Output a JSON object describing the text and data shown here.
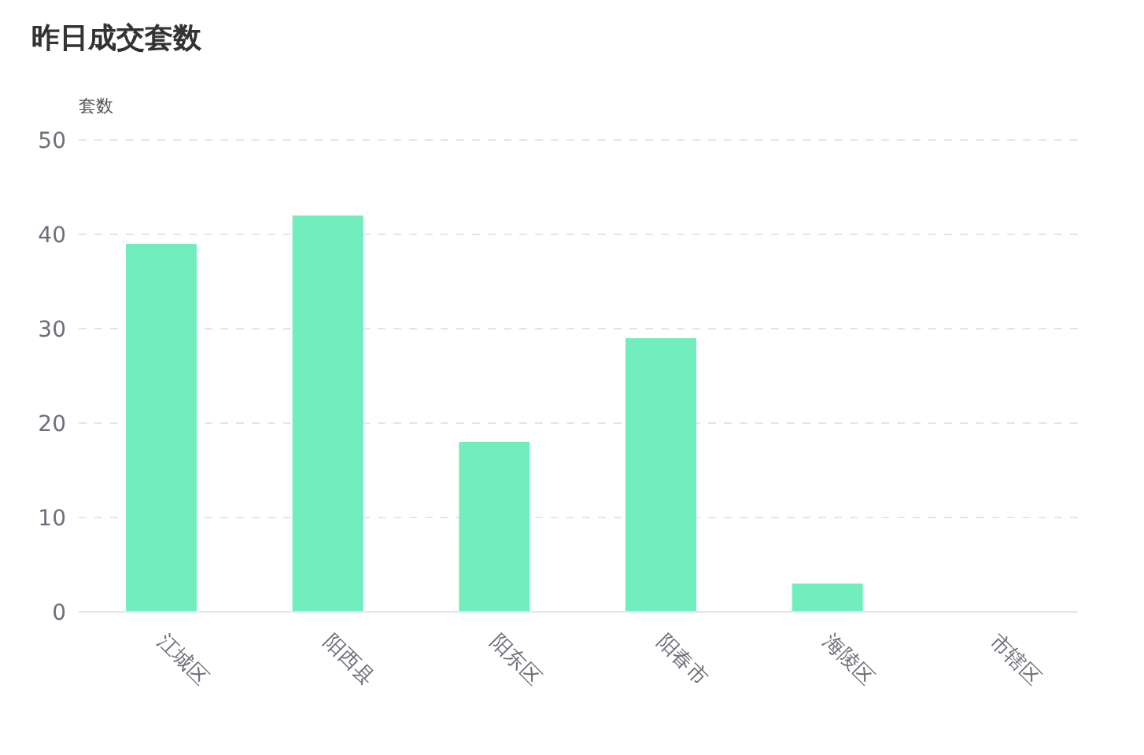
{
  "chart_data": {
    "type": "bar",
    "title": "昨日成交套数",
    "ylabel": "套数",
    "categories": [
      "江城区",
      "阳西县",
      "阳东区",
      "阳春市",
      "海陵区",
      "市辖区"
    ],
    "values": [
      39,
      42,
      18,
      29,
      3,
      0
    ],
    "color": "#72edbe",
    "ylim": [
      0,
      50
    ],
    "yticks": [
      0,
      10,
      20,
      30,
      40,
      50
    ],
    "grid": "y",
    "legend": false
  }
}
